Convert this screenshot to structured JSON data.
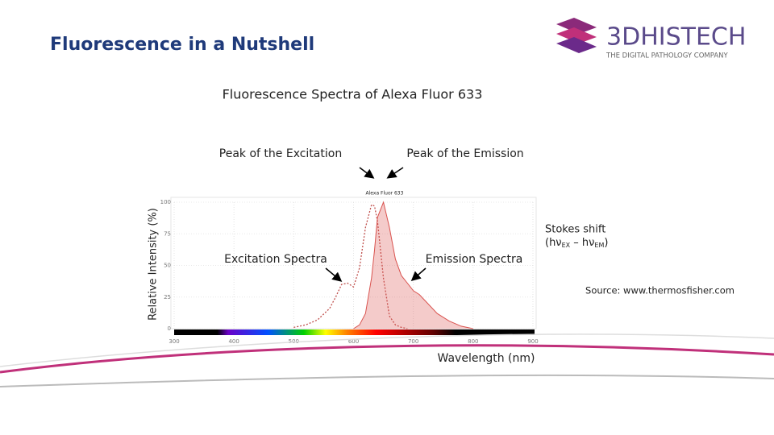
{
  "slide_title": "Fluorescence in a Nutshell",
  "logo": {
    "name": "3DHISTECH",
    "tagline": "THE DIGITAL PATHOLOGY COMPANY"
  },
  "source": "Source: www.thermosfisher.com",
  "chart_data": {
    "type": "line",
    "title": "Fluorescence Spectra of Alexa Fluor 633",
    "inner_label": "Alexa Fluor 633",
    "x_label": "Wavelength (nm)",
    "y_label": "Relative Intensity (%)",
    "annotations": {
      "peak_excitation": "Peak of the Excitation",
      "peak_emission": "Peak of the Emission",
      "excitation_spectra": "Excitation Spectra",
      "emission_spectra": "Emission Spectra",
      "stokes": "Stokes shift",
      "stokes_formula": [
        "(hν",
        "EX",
        " – hν",
        "EM",
        ")"
      ]
    },
    "x": [
      500,
      520,
      540,
      560,
      570,
      580,
      590,
      600,
      610,
      620,
      630,
      635,
      640,
      650,
      660,
      670,
      680,
      690,
      700,
      710,
      720,
      740,
      760,
      780,
      800
    ],
    "series": [
      {
        "name": "Excitation",
        "color": "#c0504d",
        "style": "dotted",
        "values": [
          1,
          3,
          7,
          16,
          25,
          35,
          36,
          33,
          48,
          80,
          98,
          97,
          85,
          40,
          10,
          3,
          1,
          0,
          null,
          null,
          null,
          null,
          null,
          null,
          null
        ]
      },
      {
        "name": "Emission",
        "color": "#d9534f",
        "style": "filled",
        "values": [
          null,
          null,
          null,
          null,
          null,
          null,
          null,
          0,
          3,
          12,
          40,
          62,
          88,
          100,
          80,
          55,
          42,
          36,
          30,
          27,
          22,
          12,
          6,
          2,
          0
        ]
      }
    ],
    "xlim": [
      300,
      900
    ],
    "xticks": [
      300,
      400,
      500,
      600,
      700,
      800,
      900
    ],
    "ylim": [
      0,
      100
    ],
    "yticks": [
      0,
      25,
      50,
      75,
      100
    ],
    "grid": true
  }
}
